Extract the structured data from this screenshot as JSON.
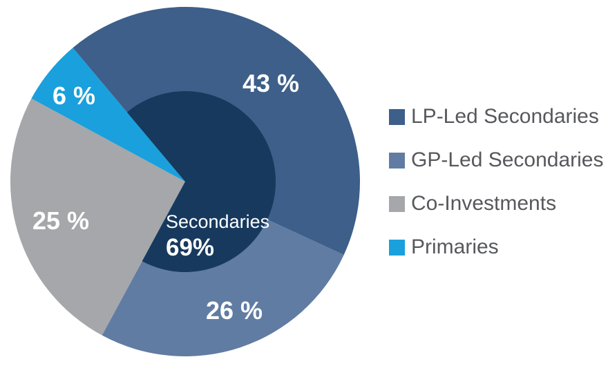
{
  "chart_data": {
    "type": "pie",
    "subtype": "donut_with_center_overlay",
    "unit": "%",
    "title": "",
    "segments": [
      {
        "label": "LP-Led Secondaries",
        "value": 43,
        "display_label": "43 %",
        "color": "#3d5f8a"
      },
      {
        "label": "GP-Led Secondaries",
        "value": 26,
        "display_label": "26 %",
        "color": "#617ca3"
      },
      {
        "label": "Co-Investments",
        "value": 25,
        "display_label": "25 %",
        "color": "#a5a7aa"
      },
      {
        "label": "Primaries",
        "value": 6,
        "display_label": "6 %",
        "color": "#1aa0dc"
      }
    ],
    "center_total": {
      "title": "Secondaries",
      "value": 69,
      "value_label": "69%",
      "color": "#17395e"
    },
    "legend_position": "right",
    "slice_label_color": "#ffffff",
    "legend_text_color": "#57585c",
    "background_color": "#ffffff"
  }
}
